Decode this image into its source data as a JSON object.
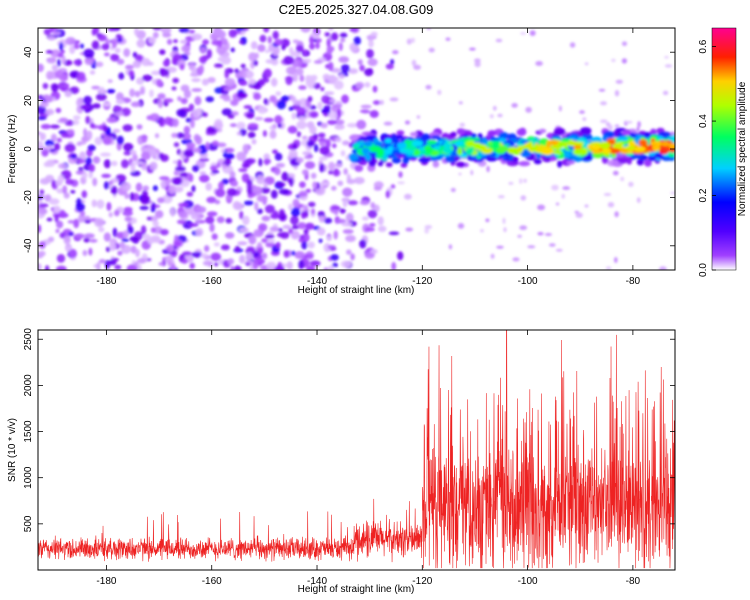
{
  "title": "C2E5.2025.327.04.08.G09",
  "chart_data": [
    {
      "type": "heatmap",
      "xlabel": "Height of straight line (km)",
      "ylabel": "Frequency (Hz)",
      "xlim": [
        -193,
        -72
      ],
      "ylim": [
        -50,
        50
      ],
      "xticks": [
        -180,
        -160,
        -140,
        -120,
        -100,
        -80
      ],
      "yticks": [
        -40,
        -20,
        0,
        20,
        40
      ],
      "colorbar": {
        "label": "Normalized spectral amplitude",
        "range": [
          0.0,
          0.65
        ],
        "ticks": [
          "0.0",
          "0.2",
          "0.4",
          "0.6"
        ],
        "colormap": "rainbow",
        "colors": [
          "#ffffff",
          "#7a00e0",
          "#0000ff",
          "#00ffff",
          "#00ff00",
          "#ffff00",
          "#ff0000",
          "#ff00a0"
        ]
      },
      "features": {
        "noise_region_km": [
          -193,
          -125
        ],
        "signal_band_hz": [
          -4,
          4
        ],
        "signal_start_km": -133,
        "signal_end_km": -72,
        "peak_amplitude": 0.62
      }
    },
    {
      "type": "line",
      "xlabel": "Height of straight line (km)",
      "ylabel": "SNR (10 * v/v)",
      "xlim": [
        -193,
        -72
      ],
      "ylim": [
        0,
        2600
      ],
      "xticks": [
        -180,
        -160,
        -140,
        -120,
        -100,
        -80
      ],
      "yticks": [
        500,
        1000,
        1500,
        2000,
        2500
      ],
      "color": "#ee2222",
      "series": [
        {
          "name": "SNR",
          "segments": [
            {
              "x_range": [
                -193,
                -133
              ],
              "baseline": 230,
              "spread": 150,
              "max_spike": 640
            },
            {
              "x_range": [
                -133,
                -120
              ],
              "baseline": 330,
              "spread": 250,
              "max_spike": 800
            },
            {
              "x_range": [
                -120,
                -72
              ],
              "baseline": 650,
              "spread": 900,
              "max_spike": 2600
            }
          ]
        }
      ]
    }
  ]
}
